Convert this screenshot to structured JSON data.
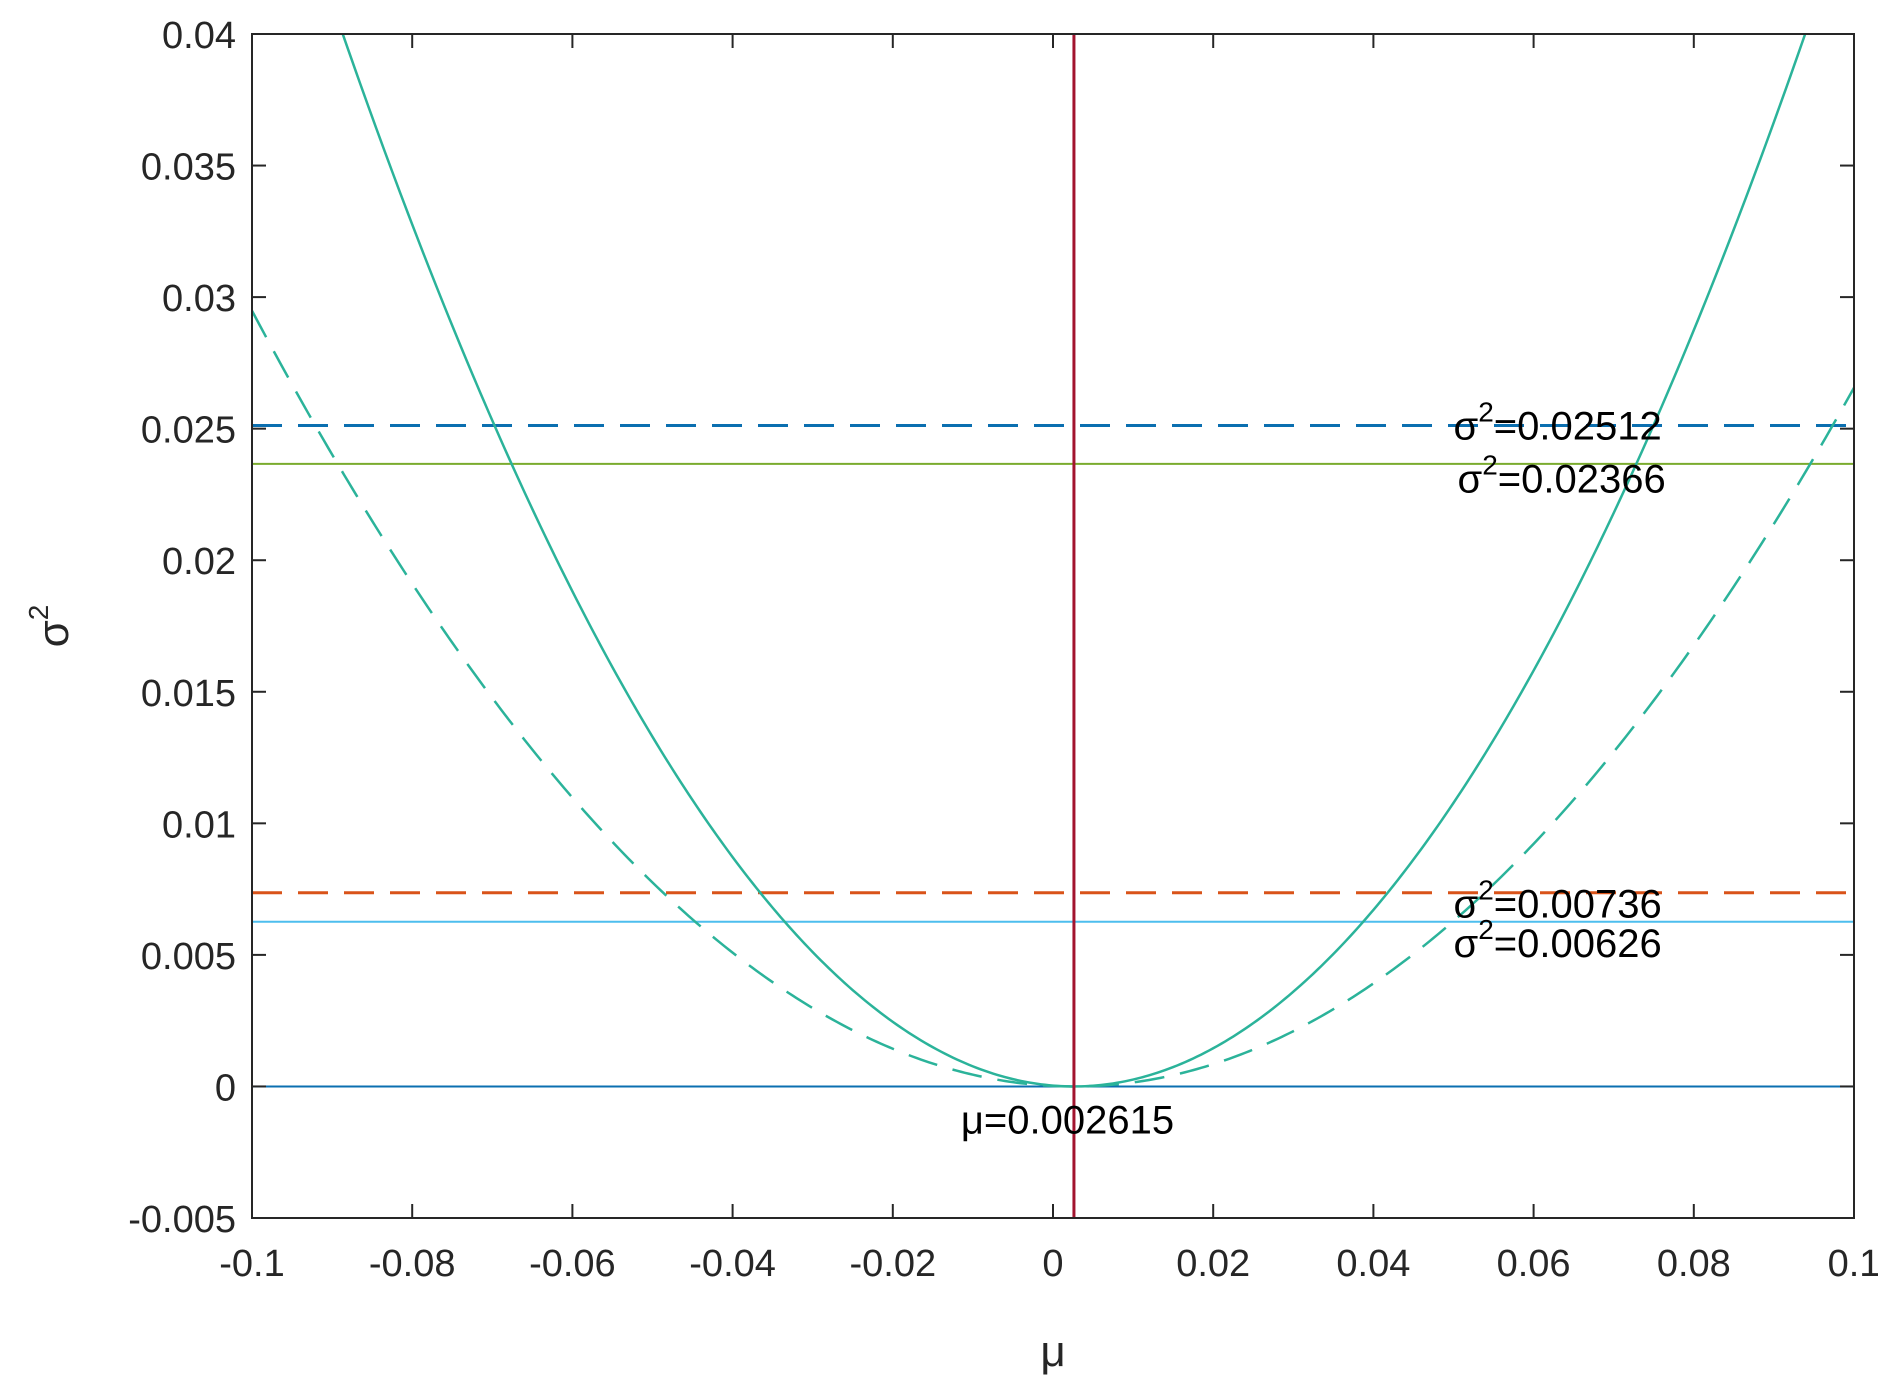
{
  "chart_data": {
    "type": "line",
    "title": "",
    "xlabel": "μ",
    "ylabel_base": "σ",
    "ylabel_sup": "2",
    "xlim": [
      -0.1,
      0.1
    ],
    "ylim": [
      -0.005,
      0.04
    ],
    "grid": false,
    "x_ticks": [
      -0.1,
      -0.08,
      -0.06,
      -0.04,
      -0.02,
      0,
      0.02,
      0.04,
      0.06,
      0.08,
      0.1
    ],
    "x_tick_labels": [
      "-0.1",
      "-0.08",
      "-0.06",
      "-0.04",
      "-0.02",
      "0",
      "0.02",
      "0.04",
      "0.06",
      "0.08",
      "0.1"
    ],
    "y_ticks": [
      -0.005,
      0,
      0.005,
      0.01,
      0.015,
      0.02,
      0.025,
      0.03,
      0.035,
      0.04
    ],
    "y_tick_labels": [
      "-0.005",
      "0",
      "0.005",
      "0.01",
      "0.015",
      "0.02",
      "0.025",
      "0.03",
      "0.035",
      "0.04"
    ],
    "curves": [
      {
        "kind": "parabola",
        "style": "solid",
        "color": "#2bb39a",
        "vertex_x": 0.002615,
        "coef": 4.8
      },
      {
        "kind": "parabola",
        "style": "dashed",
        "color": "#2bb39a",
        "vertex_x": 0.002615,
        "coef": 2.8
      }
    ],
    "hlines": [
      {
        "y": 0.02512,
        "style": "dashed",
        "color": "#0b6fb0"
      },
      {
        "y": 0.02366,
        "style": "solid",
        "color": "#7aab2e"
      },
      {
        "y": 0.00736,
        "style": "dashed",
        "color": "#d95319"
      },
      {
        "y": 0.00626,
        "style": "solid",
        "color": "#4dbeee"
      },
      {
        "y": 0,
        "style": "solid",
        "color": "#0b6fb0"
      }
    ],
    "vlines": [
      {
        "x": 0.002615,
        "style": "solid",
        "color": "#a2142f"
      }
    ],
    "annotations": [
      {
        "base": "σ",
        "sup": "2",
        "rest": "=0.02512",
        "x": 0.05,
        "y": 0.02512
      },
      {
        "base": "σ",
        "sup": "2",
        "rest": "=0.02366",
        "x": 0.0505,
        "y": 0.0231
      },
      {
        "base": "σ",
        "sup": "2",
        "rest": "=0.00736",
        "x": 0.05,
        "y": 0.00696
      },
      {
        "base": "σ",
        "sup": "2",
        "rest": "=0.00626",
        "x": 0.05,
        "y": 0.00546
      },
      {
        "base": "",
        "sup": "",
        "rest": "μ=0.002615",
        "x": -0.0115,
        "y": -0.00125
      }
    ]
  }
}
